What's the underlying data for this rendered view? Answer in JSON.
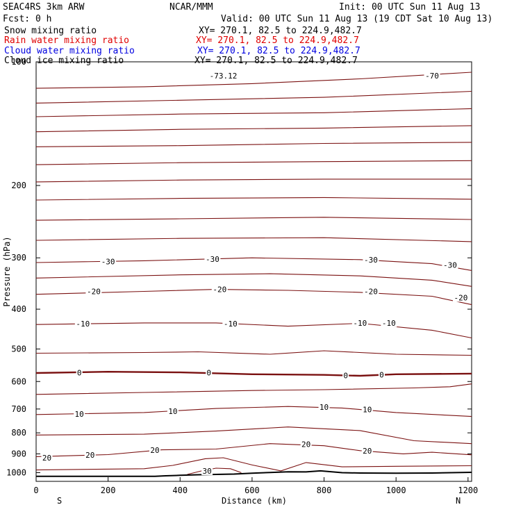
{
  "header": {
    "model": "SEAC4RS  3km ARW",
    "org": "NCAR/MMM",
    "init": "Init: 00 UTC Sun 11 Aug 13",
    "fcst": "Fcst:    0 h",
    "valid": "Valid: 00 UTC Sun 11 Aug 13 (19 CDT Sat 10 Aug 13)"
  },
  "fields": [
    {
      "name": "Snow mixing ratio",
      "xy": "XY= 270.1, 82.5 to 224.9,482.7",
      "color": "#000000"
    },
    {
      "name": "Rain water mixing ratio",
      "xy": "XY= 270.1, 82.5 to 224.9,482.7",
      "color": "#e00000"
    },
    {
      "name": "Cloud water mixing ratio",
      "xy": "XY= 270.1, 82.5 to 224.9,482.7",
      "color": "#0000e0"
    },
    {
      "name": "Cloud ice mixing ratio",
      "xy": "XY= 270.1, 82.5 to 224.9,482.7",
      "color": "#000000"
    }
  ],
  "chart_data": {
    "type": "line",
    "xlabel": "Distance (km)",
    "ylabel": "Pressure (hPa)",
    "xlim": [
      0,
      1210
    ],
    "ylim": [
      100,
      1050
    ],
    "y_log": true,
    "x_ticks": [
      0,
      200,
      400,
      600,
      800,
      1000,
      1200
    ],
    "x_tick_labels": [
      "0",
      "200",
      "400",
      "600",
      "800",
      "1000",
      "1200"
    ],
    "y_ticks": [
      200,
      300,
      400,
      500,
      600,
      700,
      800,
      900,
      1000
    ],
    "y_tick_labels": [
      "200",
      "300",
      "400",
      "500",
      "600",
      "700",
      "800",
      "900",
      "1000"
    ],
    "y_top_label": "100",
    "left_end_label": "S",
    "right_end_label": "N",
    "contour_color": "#7a1010",
    "terrain_color": "#000000",
    "isotherms": [
      {
        "level": "-70",
        "points": [
          [
            0,
            116
          ],
          [
            300,
            115
          ],
          [
            600,
            113
          ],
          [
            900,
            110
          ],
          [
            1210,
            106
          ]
        ]
      },
      {
        "level": "",
        "points": [
          [
            0,
            126
          ],
          [
            400,
            124
          ],
          [
            800,
            122
          ],
          [
            1210,
            118
          ]
        ]
      },
      {
        "level": "",
        "points": [
          [
            0,
            136
          ],
          [
            400,
            134
          ],
          [
            800,
            133
          ],
          [
            1210,
            130
          ]
        ]
      },
      {
        "level": "",
        "points": [
          [
            0,
            148
          ],
          [
            400,
            146
          ],
          [
            800,
            145
          ],
          [
            1210,
            143
          ]
        ]
      },
      {
        "level": "",
        "points": [
          [
            0,
            161
          ],
          [
            400,
            160
          ],
          [
            800,
            158
          ],
          [
            1210,
            157
          ]
        ]
      },
      {
        "level": "",
        "points": [
          [
            0,
            178
          ],
          [
            400,
            176
          ],
          [
            800,
            175
          ],
          [
            1210,
            174
          ]
        ]
      },
      {
        "level": "",
        "points": [
          [
            0,
            196
          ],
          [
            400,
            194
          ],
          [
            800,
            193
          ],
          [
            1210,
            193
          ]
        ]
      },
      {
        "level": "",
        "points": [
          [
            0,
            217
          ],
          [
            400,
            215
          ],
          [
            800,
            214
          ],
          [
            1210,
            216
          ]
        ]
      },
      {
        "level": "",
        "points": [
          [
            0,
            243
          ],
          [
            400,
            241
          ],
          [
            800,
            239
          ],
          [
            1210,
            242
          ]
        ]
      },
      {
        "level": "",
        "points": [
          [
            0,
            272
          ],
          [
            400,
            269
          ],
          [
            800,
            268
          ],
          [
            1210,
            274
          ]
        ]
      },
      {
        "level": "-30",
        "points": [
          [
            0,
            308
          ],
          [
            300,
            305
          ],
          [
            600,
            300
          ],
          [
            900,
            303
          ],
          [
            1100,
            310
          ],
          [
            1210,
            322
          ]
        ]
      },
      {
        "level": "",
        "points": [
          [
            0,
            336
          ],
          [
            400,
            330
          ],
          [
            650,
            328
          ],
          [
            900,
            332
          ],
          [
            1100,
            340
          ],
          [
            1210,
            352
          ]
        ]
      },
      {
        "level": "-20",
        "points": [
          [
            0,
            368
          ],
          [
            300,
            362
          ],
          [
            500,
            358
          ],
          [
            700,
            360
          ],
          [
            900,
            364
          ],
          [
            1100,
            372
          ],
          [
            1210,
            390
          ]
        ]
      },
      {
        "level": "-10",
        "points": [
          [
            0,
            436
          ],
          [
            300,
            432
          ],
          [
            500,
            432
          ],
          [
            700,
            440
          ],
          [
            900,
            433
          ],
          [
            1100,
            450
          ],
          [
            1210,
            470
          ]
        ]
      },
      {
        "level": "",
        "points": [
          [
            0,
            512
          ],
          [
            300,
            510
          ],
          [
            450,
            508
          ],
          [
            650,
            515
          ],
          [
            800,
            505
          ],
          [
            1000,
            515
          ],
          [
            1210,
            518
          ]
        ]
      },
      {
        "level": "0",
        "points": [
          [
            0,
            572
          ],
          [
            200,
            568
          ],
          [
            400,
            570
          ],
          [
            600,
            576
          ],
          [
            800,
            578
          ],
          [
            900,
            581
          ],
          [
            1000,
            576
          ],
          [
            1210,
            574
          ]
        ]
      },
      {
        "level": "",
        "points": [
          [
            0,
            645
          ],
          [
            300,
            638
          ],
          [
            600,
            631
          ],
          [
            800,
            628
          ],
          [
            1050,
            622
          ],
          [
            1150,
            618
          ],
          [
            1210,
            608
          ]
        ]
      },
      {
        "level": "10",
        "points": [
          [
            0,
            722
          ],
          [
            300,
            714
          ],
          [
            500,
            698
          ],
          [
            700,
            690
          ],
          [
            850,
            696
          ],
          [
            1000,
            714
          ],
          [
            1210,
            730
          ]
        ]
      },
      {
        "level": "",
        "points": [
          [
            0,
            810
          ],
          [
            300,
            806
          ],
          [
            500,
            792
          ],
          [
            700,
            774
          ],
          [
            900,
            790
          ],
          [
            1050,
            836
          ],
          [
            1210,
            850
          ]
        ]
      },
      {
        "level": "20",
        "points": [
          [
            0,
            914
          ],
          [
            200,
            904
          ],
          [
            350,
            880
          ],
          [
            500,
            876
          ],
          [
            650,
            850
          ],
          [
            800,
            860
          ],
          [
            900,
            884
          ],
          [
            1020,
            900
          ],
          [
            1100,
            892
          ],
          [
            1210,
            905
          ]
        ]
      },
      {
        "level": "",
        "points": [
          [
            0,
            985
          ],
          [
            300,
            978
          ],
          [
            380,
            960
          ],
          [
            470,
            925
          ],
          [
            520,
            920
          ],
          [
            600,
            958
          ],
          [
            680,
            990
          ],
          [
            750,
            945
          ],
          [
            850,
            968
          ],
          [
            1000,
            965
          ],
          [
            1210,
            962
          ]
        ]
      },
      {
        "level": "30",
        "points": [
          [
            420,
            1010
          ],
          [
            460,
            990
          ],
          [
            500,
            975
          ],
          [
            540,
            978
          ],
          [
            570,
            1000
          ]
        ]
      }
    ],
    "contour_labels": [
      {
        "text": "-73.12",
        "x": 520,
        "y": 108
      },
      {
        "text": "-70",
        "x": 1100,
        "y": 108
      },
      {
        "text": "-30",
        "x": 200,
        "y": 306
      },
      {
        "text": "-30",
        "x": 490,
        "y": 302
      },
      {
        "text": "-30",
        "x": 930,
        "y": 303
      },
      {
        "text": "-30",
        "x": 1150,
        "y": 312
      },
      {
        "text": "-20",
        "x": 160,
        "y": 362
      },
      {
        "text": "-20",
        "x": 510,
        "y": 358
      },
      {
        "text": "-20",
        "x": 930,
        "y": 362
      },
      {
        "text": "-20",
        "x": 1180,
        "y": 375
      },
      {
        "text": "-10",
        "x": 130,
        "y": 434
      },
      {
        "text": "-10",
        "x": 540,
        "y": 434
      },
      {
        "text": "-10",
        "x": 900,
        "y": 432
      },
      {
        "text": "-10",
        "x": 980,
        "y": 432
      },
      {
        "text": "0",
        "x": 120,
        "y": 571
      },
      {
        "text": "0",
        "x": 480,
        "y": 571
      },
      {
        "text": "0",
        "x": 860,
        "y": 580
      },
      {
        "text": "0",
        "x": 960,
        "y": 578
      },
      {
        "text": "10",
        "x": 120,
        "y": 720
      },
      {
        "text": "10",
        "x": 380,
        "y": 708
      },
      {
        "text": "10",
        "x": 800,
        "y": 692
      },
      {
        "text": "10",
        "x": 920,
        "y": 702
      },
      {
        "text": "20",
        "x": 30,
        "y": 920
      },
      {
        "text": "20",
        "x": 150,
        "y": 905
      },
      {
        "text": "20",
        "x": 330,
        "y": 882
      },
      {
        "text": "20",
        "x": 750,
        "y": 853
      },
      {
        "text": "20",
        "x": 920,
        "y": 884
      },
      {
        "text": "30",
        "x": 475,
        "y": 990
      }
    ],
    "terrain": [
      [
        0,
        1021
      ],
      [
        200,
        1021
      ],
      [
        330,
        1021
      ],
      [
        360,
        1018
      ],
      [
        400,
        1015
      ],
      [
        450,
        1012
      ],
      [
        500,
        1010
      ],
      [
        550,
        1008
      ],
      [
        600,
        1003
      ],
      [
        650,
        999
      ],
      [
        700,
        995
      ],
      [
        750,
        996
      ],
      [
        790,
        990
      ],
      [
        850,
        1000
      ],
      [
        900,
        1002
      ],
      [
        1000,
        1003
      ],
      [
        1100,
        1002
      ],
      [
        1210,
        998
      ]
    ]
  }
}
